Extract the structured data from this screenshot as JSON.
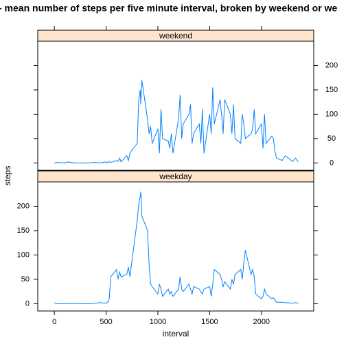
{
  "chart_data": {
    "type": "line",
    "title": "- mean number of steps per five minute interval, broken by weekend or we",
    "x_label": "interval",
    "y_label": "steps",
    "xlim": [
      -160,
      2505
    ],
    "xticks": [
      0,
      500,
      1000,
      1500,
      2000
    ],
    "ylim": [
      -15,
      250
    ],
    "yticks": [
      0,
      50,
      100,
      150,
      200
    ],
    "x": [
      0,
      30,
      100,
      130,
      200,
      230,
      300,
      330,
      400,
      430,
      500,
      515,
      530,
      545,
      600,
      615,
      630,
      645,
      700,
      715,
      730,
      745,
      800,
      815,
      830,
      835,
      845,
      900,
      915,
      930,
      945,
      1000,
      1015,
      1030,
      1045,
      1100,
      1115,
      1130,
      1145,
      1200,
      1215,
      1230,
      1245,
      1300,
      1315,
      1330,
      1345,
      1400,
      1415,
      1430,
      1445,
      1500,
      1515,
      1530,
      1545,
      1600,
      1615,
      1630,
      1645,
      1700,
      1715,
      1730,
      1745,
      1800,
      1815,
      1830,
      1845,
      1900,
      1915,
      1930,
      1945,
      2000,
      2015,
      2030,
      2045,
      2100,
      2115,
      2130,
      2145,
      2200,
      2230,
      2300,
      2330,
      2355
    ],
    "series": [
      {
        "name": "weekend",
        "color": "#0080ff",
        "values": [
          0,
          1,
          0,
          2,
          0,
          0,
          0,
          0,
          1,
          0,
          2,
          0,
          3,
          1,
          5,
          3,
          10,
          2,
          15,
          5,
          20,
          25,
          40,
          130,
          150,
          120,
          170,
          90,
          60,
          75,
          40,
          70,
          20,
          110,
          50,
          45,
          30,
          60,
          20,
          90,
          140,
          50,
          80,
          100,
          120,
          40,
          60,
          80,
          40,
          110,
          20,
          100,
          60,
          155,
          80,
          130,
          100,
          60,
          130,
          100,
          60,
          120,
          50,
          40,
          100,
          80,
          50,
          60,
          70,
          110,
          60,
          80,
          30,
          100,
          40,
          55,
          50,
          25,
          10,
          5,
          15,
          3,
          10,
          2
        ]
      },
      {
        "name": "weekday",
        "color": "#0080ff",
        "values": [
          2,
          0,
          0,
          0,
          1,
          0,
          0,
          0,
          1,
          2,
          1,
          3,
          10,
          55,
          70,
          50,
          65,
          55,
          60,
          75,
          55,
          80,
          170,
          205,
          220,
          230,
          180,
          150,
          80,
          40,
          35,
          20,
          40,
          30,
          15,
          30,
          20,
          25,
          15,
          30,
          55,
          30,
          25,
          40,
          30,
          20,
          35,
          30,
          25,
          20,
          30,
          35,
          15,
          40,
          70,
          60,
          50,
          35,
          45,
          30,
          50,
          40,
          60,
          70,
          50,
          85,
          110,
          60,
          70,
          55,
          20,
          10,
          15,
          30,
          20,
          10,
          12,
          8,
          3,
          3,
          2,
          1,
          2,
          1
        ]
      }
    ]
  }
}
